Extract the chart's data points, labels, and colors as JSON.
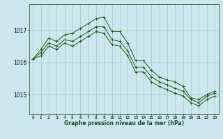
{
  "xlabel": "Graphe pression niveau de la mer (hPa)",
  "background_color": "#cce8ee",
  "grid_color": "#aacccc",
  "line_color": "#1a5c1a",
  "ylim": [
    1014.4,
    1017.8
  ],
  "yticks": [
    1015,
    1016,
    1017
  ],
  "xticks": [
    0,
    1,
    2,
    3,
    4,
    5,
    6,
    7,
    8,
    9,
    10,
    11,
    12,
    13,
    14,
    15,
    16,
    17,
    18,
    19,
    20,
    21,
    22,
    23
  ],
  "series1": [
    1016.1,
    1016.4,
    1016.75,
    1016.65,
    1016.85,
    1016.9,
    1017.05,
    1017.2,
    1017.35,
    1017.4,
    1016.95,
    1016.95,
    1016.6,
    1016.05,
    1016.05,
    1015.75,
    1015.55,
    1015.45,
    1015.4,
    1015.25,
    1014.9,
    1014.85,
    1015.0,
    1015.1
  ],
  "series2": [
    1016.1,
    1016.3,
    1016.6,
    1016.5,
    1016.7,
    1016.65,
    1016.8,
    1016.95,
    1017.1,
    1017.1,
    1016.7,
    1016.65,
    1016.35,
    1015.85,
    1015.85,
    1015.55,
    1015.4,
    1015.3,
    1015.2,
    1015.1,
    1014.85,
    1014.75,
    1014.95,
    1015.05
  ],
  "series3": [
    1016.1,
    1016.2,
    1016.5,
    1016.4,
    1016.6,
    1016.5,
    1016.65,
    1016.8,
    1016.95,
    1016.9,
    1016.55,
    1016.5,
    1016.2,
    1015.7,
    1015.7,
    1015.4,
    1015.25,
    1015.15,
    1015.05,
    1014.95,
    1014.75,
    1014.65,
    1014.85,
    1014.95
  ]
}
